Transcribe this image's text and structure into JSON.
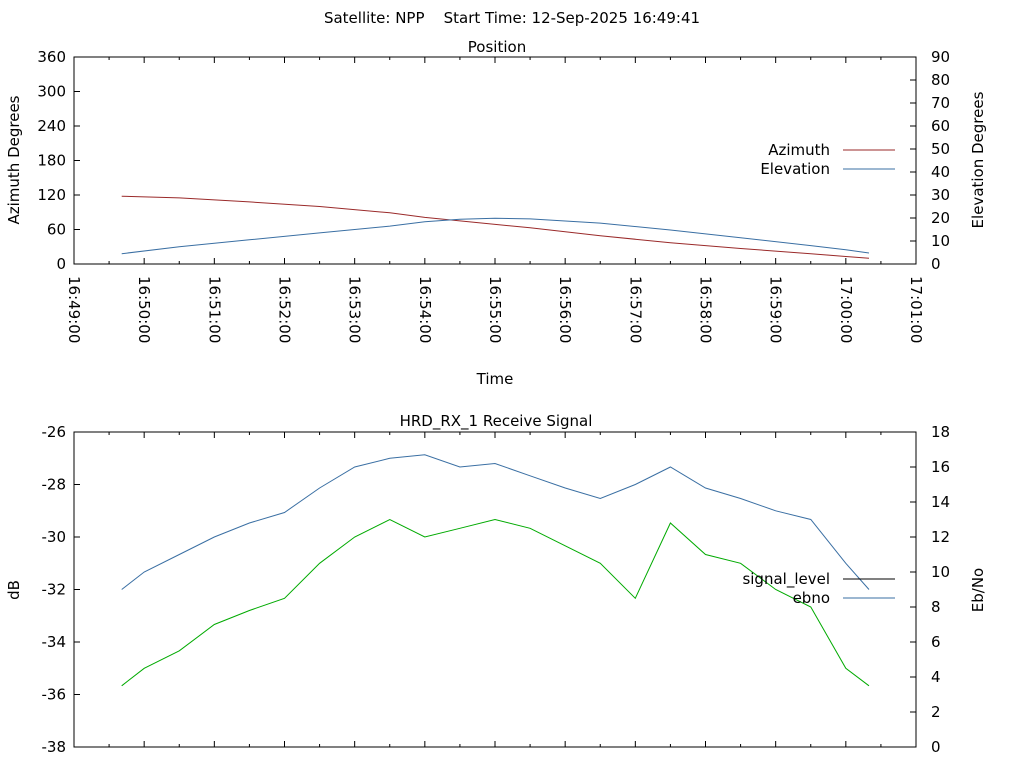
{
  "header": {
    "title": "Satellite: NPP    Start Time: 12-Sep-2025 16:49:41"
  },
  "chart_data": [
    {
      "type": "line",
      "title": "Position",
      "xlabel": "Time",
      "ylabel": "Azimuth Degrees",
      "y2label": "Elevation Degrees",
      "x_ticks": [
        "16:49:00",
        "16:50:00",
        "16:51:00",
        "16:52:00",
        "16:53:00",
        "16:54:00",
        "16:55:00",
        "16:56:00",
        "16:57:00",
        "16:58:00",
        "16:59:00",
        "17:00:00",
        "17:01:00"
      ],
      "y_ticks": [
        "0",
        "60",
        "120",
        "180",
        "240",
        "300",
        "360"
      ],
      "y2_ticks": [
        "0",
        "10",
        "20",
        "30",
        "40",
        "50",
        "60",
        "70",
        "80",
        "90"
      ],
      "ylim": [
        0,
        360
      ],
      "y2lim": [
        0,
        90
      ],
      "xlim_minutes": [
        0,
        12
      ],
      "legend_position": "right",
      "series": [
        {
          "name": "Azimuth",
          "axis": "y",
          "color": "#9a2a2a",
          "x_minutes": [
            0.68,
            1.5,
            2.5,
            3.5,
            4.5,
            5.0,
            5.5,
            6.5,
            7.5,
            8.5,
            9.5,
            10.5,
            11.0,
            11.33
          ],
          "values": [
            118,
            115,
            108,
            100,
            89,
            81,
            75,
            63,
            49,
            37,
            27,
            18,
            13,
            10
          ]
        },
        {
          "name": "Elevation",
          "axis": "y2",
          "color": "#3a6fa3",
          "x_minutes": [
            0.68,
            1.5,
            2.5,
            3.5,
            4.5,
            5.0,
            5.5,
            6.0,
            6.5,
            7.5,
            8.5,
            9.5,
            10.5,
            11.0,
            11.33
          ],
          "values": [
            4.5,
            7.5,
            10.5,
            13.5,
            16.5,
            18.4,
            19.5,
            19.9,
            19.6,
            17.8,
            14.8,
            11.4,
            8.0,
            6.2,
            4.8
          ]
        }
      ]
    },
    {
      "type": "line",
      "title": "HRD_RX_1 Receive Signal",
      "xlabel": "",
      "ylabel": "dB",
      "y2label": "Eb/No",
      "y_ticks": [
        "-38",
        "-36",
        "-34",
        "-32",
        "-30",
        "-28",
        "-26"
      ],
      "y2_ticks": [
        "0",
        "2",
        "4",
        "6",
        "8",
        "10",
        "12",
        "14",
        "16",
        "18"
      ],
      "ylim": [
        -38,
        -26
      ],
      "y2lim": [
        0,
        18
      ],
      "xlim_minutes": [
        0,
        12
      ],
      "legend_position": "right",
      "series": [
        {
          "name": "signal_level",
          "axis": "y",
          "color": "#000000",
          "x_minutes": [],
          "values": []
        },
        {
          "name": "ebno",
          "axis": "y2",
          "color": "#3a6fa3",
          "x_minutes": [
            0.68,
            1.0,
            1.5,
            2.0,
            2.5,
            3.0,
            3.5,
            4.0,
            4.5,
            5.0,
            5.5,
            6.0,
            6.5,
            7.0,
            7.5,
            8.0,
            8.5,
            9.0,
            9.5,
            10.0,
            10.5,
            11.0,
            11.33
          ],
          "values": [
            9.0,
            10.0,
            11.0,
            12.0,
            12.8,
            13.4,
            14.8,
            16.0,
            16.5,
            16.7,
            16.0,
            16.2,
            15.5,
            14.8,
            14.2,
            15.0,
            16.0,
            14.8,
            14.2,
            13.5,
            13.0,
            10.5,
            9.0
          ]
        },
        {
          "name": "",
          "axis": "y2",
          "color": "#00aa00",
          "x_minutes": [
            0.68,
            1.0,
            1.5,
            2.0,
            2.5,
            3.0,
            3.5,
            4.0,
            4.5,
            5.0,
            5.5,
            6.0,
            6.5,
            7.0,
            7.5,
            8.0,
            8.5,
            9.0,
            9.5,
            10.0,
            10.5,
            11.0,
            11.33
          ],
          "values": [
            3.5,
            4.5,
            5.5,
            7.0,
            7.8,
            8.5,
            10.5,
            12.0,
            13.0,
            12.0,
            12.5,
            13.0,
            12.5,
            11.5,
            10.5,
            8.5,
            12.8,
            11.0,
            10.5,
            9.0,
            8.0,
            4.5,
            3.5
          ]
        }
      ]
    }
  ]
}
